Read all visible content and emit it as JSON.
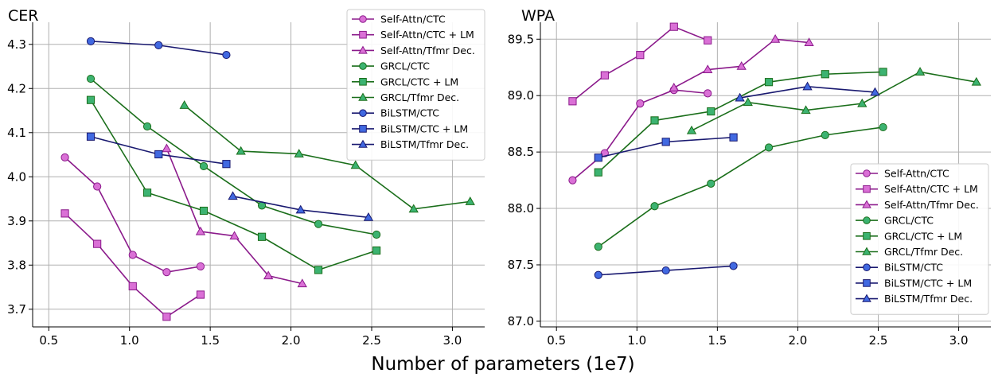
{
  "figure": {
    "xlabel": "Number of parameters (1e7)"
  },
  "legend_entries": [
    {
      "label": "Self-Attn/CTC",
      "color": "#8b1a8b",
      "fill": "#da70d6",
      "marker": "circle"
    },
    {
      "label": "Self-Attn/CTC + LM",
      "color": "#8b1a8b",
      "fill": "#da70d6",
      "marker": "square"
    },
    {
      "label": "Self-Attn/Tfmr Dec.",
      "color": "#8b1a8b",
      "fill": "#da70d6",
      "marker": "triangle"
    },
    {
      "label": "GRCL/CTC",
      "color": "#1a6e1a",
      "fill": "#3cb371",
      "marker": "circle"
    },
    {
      "label": "GRCL/CTC + LM",
      "color": "#1a6e1a",
      "fill": "#3cb371",
      "marker": "square"
    },
    {
      "label": "GRCL/Tfmr Dec.",
      "color": "#1a6e1a",
      "fill": "#3cb371",
      "marker": "triangle"
    },
    {
      "label": "BiLSTM/CTC",
      "color": "#191970",
      "fill": "#4169e1",
      "marker": "circle"
    },
    {
      "label": "BiLSTM/CTC + LM",
      "color": "#191970",
      "fill": "#4169e1",
      "marker": "square"
    },
    {
      "label": "BiLSTM/Tfmr Dec.",
      "color": "#191970",
      "fill": "#4169e1",
      "marker": "triangle"
    }
  ],
  "chart_data": [
    {
      "type": "line",
      "title": "CER",
      "xlabel": "",
      "ylabel": "",
      "xlim": [
        0.4,
        3.2
      ],
      "ylim": [
        3.66,
        4.35
      ],
      "xticks": [
        0.5,
        1.0,
        1.5,
        2.0,
        2.5,
        3.0
      ],
      "xtick_labels": [
        "0.5",
        "1.0",
        "1.5",
        "2.0",
        "2.5",
        "3.0"
      ],
      "yticks": [
        3.7,
        3.8,
        3.9,
        4.0,
        4.1,
        4.2,
        4.3
      ],
      "ytick_labels": [
        "3.7",
        "3.8",
        "3.9",
        "4.0",
        "4.1",
        "4.2",
        "4.3"
      ],
      "grid": true,
      "legend_position": "top-right",
      "series": [
        {
          "name": "Self-Attn/CTC",
          "x": [
            0.6,
            0.8,
            1.02,
            1.23,
            1.44
          ],
          "y": [
            4.044,
            3.978,
            3.823,
            3.784,
            3.797
          ]
        },
        {
          "name": "Self-Attn/CTC + LM",
          "x": [
            0.6,
            0.8,
            1.02,
            1.23,
            1.44
          ],
          "y": [
            3.917,
            3.848,
            3.752,
            3.683,
            3.733
          ]
        },
        {
          "name": "Self-Attn/Tfmr Dec.",
          "x": [
            1.23,
            1.44,
            1.65,
            1.86,
            2.07
          ],
          "y": [
            4.064,
            3.876,
            3.866,
            3.776,
            3.758
          ]
        },
        {
          "name": "GRCL/CTC",
          "x": [
            0.76,
            1.11,
            1.46,
            1.82,
            2.17,
            2.53
          ],
          "y": [
            4.222,
            4.114,
            4.024,
            3.935,
            3.893,
            3.869
          ]
        },
        {
          "name": "GRCL/CTC + LM",
          "x": [
            0.76,
            1.11,
            1.46,
            1.82,
            2.17,
            2.53
          ],
          "y": [
            4.174,
            3.964,
            3.923,
            3.864,
            3.789,
            3.833
          ]
        },
        {
          "name": "GRCL/Tfmr Dec.",
          "x": [
            1.34,
            1.69,
            2.05,
            2.4,
            2.76,
            3.11
          ],
          "y": [
            4.162,
            4.058,
            4.052,
            4.026,
            3.927,
            3.944
          ]
        },
        {
          "name": "BiLSTM/CTC",
          "x": [
            0.76,
            1.18,
            1.6
          ],
          "y": [
            4.307,
            4.298,
            4.276
          ]
        },
        {
          "name": "BiLSTM/CTC + LM",
          "x": [
            0.76,
            1.18,
            1.6
          ],
          "y": [
            4.091,
            4.051,
            4.029
          ]
        },
        {
          "name": "BiLSTM/Tfmr Dec.",
          "x": [
            1.64,
            2.06,
            2.48
          ],
          "y": [
            3.956,
            3.925,
            3.908
          ]
        }
      ]
    },
    {
      "type": "line",
      "title": "WPA",
      "xlabel": "",
      "ylabel": "",
      "xlim": [
        0.4,
        3.2
      ],
      "ylim": [
        86.95,
        89.65
      ],
      "xticks": [
        0.5,
        1.0,
        1.5,
        2.0,
        2.5,
        3.0
      ],
      "xtick_labels": [
        "0.5",
        "1.0",
        "1.5",
        "2.0",
        "2.5",
        "3.0"
      ],
      "yticks": [
        87.0,
        87.5,
        88.0,
        88.5,
        89.0,
        89.5
      ],
      "ytick_labels": [
        "87.0",
        "87.5",
        "88.0",
        "88.5",
        "89.0",
        "89.5"
      ],
      "grid": true,
      "legend_position": "lower-right",
      "series": [
        {
          "name": "Self-Attn/CTC",
          "x": [
            0.6,
            0.8,
            1.02,
            1.23,
            1.44
          ],
          "y": [
            88.25,
            88.49,
            88.93,
            89.05,
            89.02
          ]
        },
        {
          "name": "Self-Attn/CTC + LM",
          "x": [
            0.6,
            0.8,
            1.02,
            1.23,
            1.44
          ],
          "y": [
            88.95,
            89.18,
            89.36,
            89.61,
            89.49
          ]
        },
        {
          "name": "Self-Attn/Tfmr Dec.",
          "x": [
            1.23,
            1.44,
            1.65,
            1.86,
            2.07
          ],
          "y": [
            89.07,
            89.23,
            89.26,
            89.5,
            89.47
          ]
        },
        {
          "name": "GRCL/CTC",
          "x": [
            0.76,
            1.11,
            1.46,
            1.82,
            2.17,
            2.53
          ],
          "y": [
            87.66,
            88.02,
            88.22,
            88.54,
            88.65,
            88.72
          ]
        },
        {
          "name": "GRCL/CTC + LM",
          "x": [
            0.76,
            1.11,
            1.46,
            1.82,
            2.17,
            2.53
          ],
          "y": [
            88.32,
            88.78,
            88.86,
            89.12,
            89.19,
            89.21
          ]
        },
        {
          "name": "GRCL/Tfmr Dec.",
          "x": [
            1.34,
            1.69,
            2.05,
            2.4,
            2.76,
            3.11
          ],
          "y": [
            88.69,
            88.94,
            88.87,
            88.93,
            89.21,
            89.12
          ]
        },
        {
          "name": "BiLSTM/CTC",
          "x": [
            0.76,
            1.18,
            1.6
          ],
          "y": [
            87.41,
            87.45,
            87.49
          ]
        },
        {
          "name": "BiLSTM/CTC + LM",
          "x": [
            0.76,
            1.18,
            1.6
          ],
          "y": [
            88.45,
            88.59,
            88.63
          ]
        },
        {
          "name": "BiLSTM/Tfmr Dec.",
          "x": [
            1.64,
            2.06,
            2.48
          ],
          "y": [
            88.98,
            89.08,
            89.03
          ]
        }
      ]
    }
  ]
}
